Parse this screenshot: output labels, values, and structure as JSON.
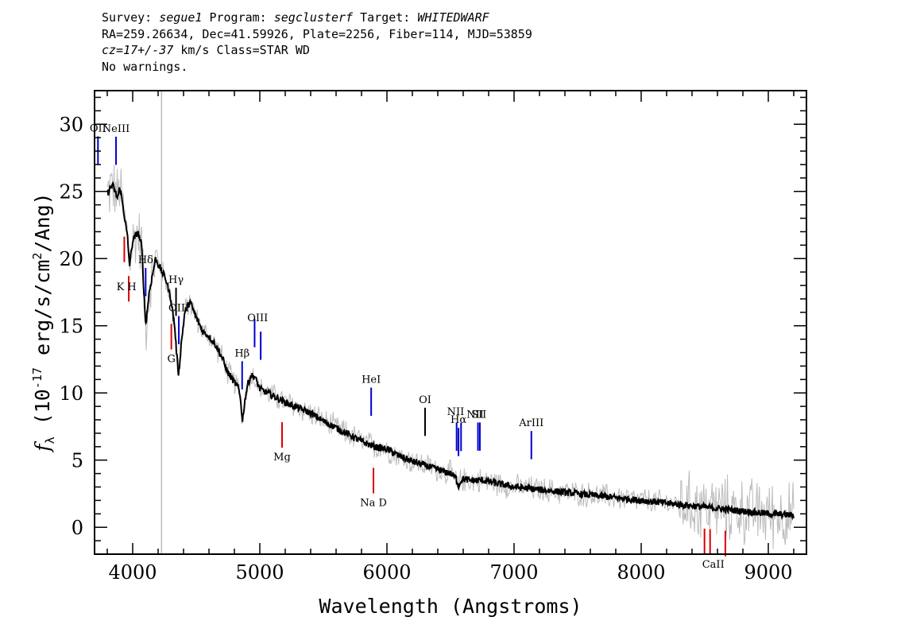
{
  "header": {
    "line1": {
      "survey_label": "Survey: ",
      "survey": "segue1",
      "program_label": " Program: ",
      "program": "segclusterf",
      "target_label": " Target: ",
      "target": "WHITEDWARF"
    },
    "line2": "RA=259.26634, Dec=41.59926, Plate=2256, Fiber=114, MJD=53859",
    "line3": {
      "cz": "cz=17+/-37",
      "rest": " km/s Class=STAR WD"
    },
    "line4": "No warnings."
  },
  "chart_data": {
    "type": "line",
    "xlabel": "Wavelength (Angstroms)",
    "ylabel": "f_λ (10^-17 erg/s/cm^2/Ang)",
    "xlim": [
      3700,
      9300
    ],
    "ylim": [
      -2,
      32.5
    ],
    "xticks": [
      4000,
      5000,
      6000,
      7000,
      8000,
      9000
    ],
    "yticks": [
      0,
      5,
      10,
      15,
      20,
      25,
      30
    ],
    "series": [
      {
        "color": "#000000",
        "x": [
          3800,
          3840,
          3880,
          3900,
          3930,
          3960,
          3975,
          4000,
          4040,
          4070,
          4102,
          4130,
          4180,
          4230,
          4260,
          4300,
          4330,
          4345,
          4362,
          4380,
          4410,
          4450,
          4500,
          4550,
          4600,
          4650,
          4700,
          4750,
          4800,
          4830,
          4850,
          4863,
          4875,
          4900,
          4930,
          4960,
          5000,
          5100,
          5200,
          5300,
          5400,
          5500,
          5600,
          5700,
          5800,
          5900,
          6000,
          6100,
          6200,
          6300,
          6400,
          6500,
          6540,
          6563,
          6590,
          6650,
          6750,
          6900,
          7000,
          7200,
          7500,
          7800,
          8000,
          8200,
          8400,
          8600,
          8800,
          9000,
          9200
        ],
        "y": [
          24.8,
          25.5,
          24.5,
          25.3,
          23.5,
          21.5,
          19.5,
          21.3,
          22.0,
          21.0,
          15.0,
          17.5,
          20.0,
          19.0,
          18.5,
          17.0,
          15.0,
          13.0,
          11.3,
          13.5,
          16.0,
          16.8,
          15.6,
          14.6,
          14.2,
          13.6,
          12.7,
          11.5,
          10.8,
          10.4,
          9.5,
          7.8,
          8.9,
          10.5,
          11.3,
          11.2,
          10.3,
          9.8,
          9.3,
          8.9,
          8.5,
          7.9,
          7.4,
          6.9,
          6.4,
          6.0,
          5.8,
          5.3,
          4.9,
          4.6,
          4.3,
          4.0,
          3.7,
          3.1,
          3.6,
          3.5,
          3.5,
          3.2,
          3.0,
          2.8,
          2.5,
          2.2,
          2.0,
          1.8,
          1.6,
          1.4,
          1.2,
          1.0,
          0.9
        ]
      }
    ],
    "lines": [
      {
        "label": "OII",
        "x": 3727,
        "color": "#0000cc"
      },
      {
        "label": "NeIII",
        "x": 3869,
        "color": "#0000cc"
      },
      {
        "label": "Hδ",
        "x": 4102,
        "color": "#0000cc"
      },
      {
        "label": "Hγ",
        "x": 4341,
        "color": "#000000"
      },
      {
        "label": "OIII",
        "x": 4363,
        "color": "#0000cc"
      },
      {
        "label": "Hβ",
        "x": 4861,
        "color": "#0000cc"
      },
      {
        "label": "OIII",
        "x": 4959,
        "color": "#0000cc"
      },
      {
        "label": "OIII",
        "x": 5007,
        "color": "#0000cc"
      },
      {
        "label": "HeI",
        "x": 5876,
        "color": "#0000cc"
      },
      {
        "label": "OI",
        "x": 6300,
        "color": "#000000"
      },
      {
        "label": "NII",
        "x": 6548,
        "color": "#0000cc"
      },
      {
        "label": "Hα",
        "x": 6563,
        "color": "#0000cc"
      },
      {
        "label": "NII",
        "x": 6583,
        "color": "#0000cc"
      },
      {
        "label": "SII",
        "x": 6716,
        "color": "#0000cc"
      },
      {
        "label": "SII",
        "x": 6731,
        "color": "#0000cc"
      },
      {
        "label": "ArIII",
        "x": 7136,
        "color": "#0000cc"
      },
      {
        "label": "K",
        "x": 3934,
        "color": "#dd0000"
      },
      {
        "label": "H",
        "x": 3969,
        "color": "#dd0000"
      },
      {
        "label": "G",
        "x": 4304,
        "color": "#dd0000"
      },
      {
        "label": "Mg",
        "x": 5175,
        "color": "#dd0000"
      },
      {
        "label": "Na",
        "x": 5894,
        "color": "#dd0000"
      },
      {
        "label": "CaII",
        "x": 8498,
        "color": "#dd0000"
      },
      {
        "label": "CaII",
        "x": 8542,
        "color": "#dd0000"
      },
      {
        "label": "CaII",
        "x": 8662,
        "color": "#dd0000"
      }
    ],
    "line_texts": [
      {
        "text": "OII",
        "x": 3727
      },
      {
        "text": "NeIII",
        "x": 3869
      },
      {
        "text": "Hδ",
        "x": 4102
      },
      {
        "text": "Hγ",
        "x": 4341
      },
      {
        "text": "OIII",
        "x": 4363
      },
      {
        "text": "Hβ",
        "x": 4861
      },
      {
        "text": "OIII",
        "x": 4983
      },
      {
        "text": "HeI",
        "x": 5876
      },
      {
        "text": "OI",
        "x": 6300
      },
      {
        "text": "NII",
        "x": 6540
      },
      {
        "text": "Hα",
        "x": 6563
      },
      {
        "text": "SII",
        "x": 6723
      },
      {
        "text": "NII",
        "x": 6694
      },
      {
        "text": "ArIII",
        "x": 7136
      },
      {
        "text": "K H",
        "x": 3951
      },
      {
        "text": "G",
        "x": 4304
      },
      {
        "text": "Mg",
        "x": 5175
      },
      {
        "text": "Na  D",
        "x": 5894
      },
      {
        "text": "CaII",
        "x": 8567
      }
    ],
    "sky_line_x": 4227,
    "noise_color": "#bbbbbb",
    "grid": false
  }
}
